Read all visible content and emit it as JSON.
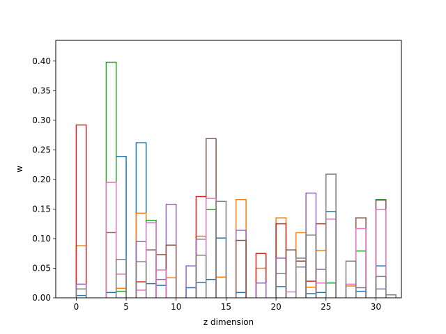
{
  "chart_data": {
    "type": "bar",
    "style": "step-histogram",
    "title": "",
    "xlabel": "z dimension",
    "ylabel": "w",
    "xlim": [
      -2.05,
      32.55
    ],
    "ylim": [
      0,
      0.435
    ],
    "xticks": [
      0,
      5,
      10,
      15,
      20,
      25,
      30
    ],
    "yticks": [
      0.0,
      0.05,
      0.1,
      0.15,
      0.2,
      0.25,
      0.3,
      0.35,
      0.4
    ],
    "ytick_labels": [
      "0.00",
      "0.05",
      "0.10",
      "0.15",
      "0.20",
      "0.25",
      "0.30",
      "0.35",
      "0.40"
    ],
    "grid": false,
    "legend": "none",
    "bin_width": 1,
    "colors": [
      "#1f77b4",
      "#ff7f0e",
      "#2ca02c",
      "#d62728",
      "#9467bd",
      "#8c564b",
      "#e377c2",
      "#7f7f7f"
    ],
    "series": [
      {
        "name": "blue",
        "bins": [
          [
            0,
            0.004
          ],
          [
            3,
            0.009
          ],
          [
            4,
            0.239
          ],
          [
            6,
            0.262
          ],
          [
            7,
            0.024
          ],
          [
            8,
            0.021
          ],
          [
            11,
            0.017
          ],
          [
            12,
            0.026
          ],
          [
            13,
            0.031
          ],
          [
            14,
            0.101
          ],
          [
            16,
            0.009
          ],
          [
            20,
            0.019
          ],
          [
            23,
            0.007
          ],
          [
            24,
            0.009
          ],
          [
            25,
            0.146
          ],
          [
            28,
            0.011
          ],
          [
            30,
            0.054
          ]
        ]
      },
      {
        "name": "orange",
        "bins": [
          [
            0,
            0.088
          ],
          [
            4,
            0.016
          ],
          [
            6,
            0.143
          ],
          [
            9,
            0.034
          ],
          [
            12,
            0.104
          ],
          [
            14,
            0.035
          ],
          [
            16,
            0.166
          ],
          [
            18,
            0.05
          ],
          [
            20,
            0.135
          ],
          [
            22,
            0.11
          ],
          [
            23,
            0.018
          ],
          [
            24,
            0.08
          ],
          [
            27,
            0.02
          ]
        ]
      },
      {
        "name": "green",
        "bins": [
          [
            3,
            0.398
          ],
          [
            4,
            0.011
          ],
          [
            7,
            0.131
          ],
          [
            13,
            0.149
          ],
          [
            25,
            0.025
          ],
          [
            28,
            0.079
          ],
          [
            30,
            0.166
          ]
        ]
      },
      {
        "name": "red",
        "bins": [
          [
            0,
            0.292
          ],
          [
            6,
            0.027
          ],
          [
            12,
            0.171
          ],
          [
            18,
            0.075
          ],
          [
            20,
            0.125
          ],
          [
            22,
            0.062
          ],
          [
            23,
            0.028
          ],
          [
            24,
            0.125
          ]
        ]
      },
      {
        "name": "purple",
        "bins": [
          [
            0,
            0.023
          ],
          [
            6,
            0.095
          ],
          [
            8,
            0.031
          ],
          [
            9,
            0.158
          ],
          [
            11,
            0.054
          ],
          [
            12,
            0.099
          ],
          [
            16,
            0.114
          ],
          [
            18,
            0.025
          ],
          [
            20,
            0.067
          ],
          [
            22,
            0.052
          ],
          [
            23,
            0.177
          ],
          [
            24,
            0.048
          ],
          [
            30,
            0.015
          ]
        ]
      },
      {
        "name": "brown",
        "bins": [
          [
            3,
            0.11
          ],
          [
            7,
            0.081
          ],
          [
            8,
            0.073
          ],
          [
            9,
            0.089
          ],
          [
            13,
            0.269
          ],
          [
            16,
            0.097
          ],
          [
            21,
            0.081
          ],
          [
            28,
            0.135
          ],
          [
            30,
            0.165
          ]
        ]
      },
      {
        "name": "pink",
        "bins": [
          [
            3,
            0.195
          ],
          [
            4,
            0.04
          ],
          [
            6,
            0.013
          ],
          [
            7,
            0.127
          ],
          [
            8,
            0.047
          ],
          [
            13,
            0.168
          ],
          [
            21,
            0.01
          ],
          [
            24,
            0.025
          ],
          [
            25,
            0.133
          ],
          [
            27,
            0.023
          ],
          [
            28,
            0.117
          ],
          [
            30,
            0.149
          ]
        ]
      },
      {
        "name": "gray",
        "bins": [
          [
            0,
            0.015
          ],
          [
            4,
            0.065
          ],
          [
            6,
            0.061
          ],
          [
            12,
            0.072
          ],
          [
            14,
            0.163
          ],
          [
            20,
            0.041
          ],
          [
            22,
            0.067
          ],
          [
            23,
            0.106
          ],
          [
            25,
            0.209
          ],
          [
            27,
            0.062
          ],
          [
            28,
            0.017
          ],
          [
            30,
            0.036
          ],
          [
            31,
            0.005
          ]
        ]
      }
    ]
  }
}
